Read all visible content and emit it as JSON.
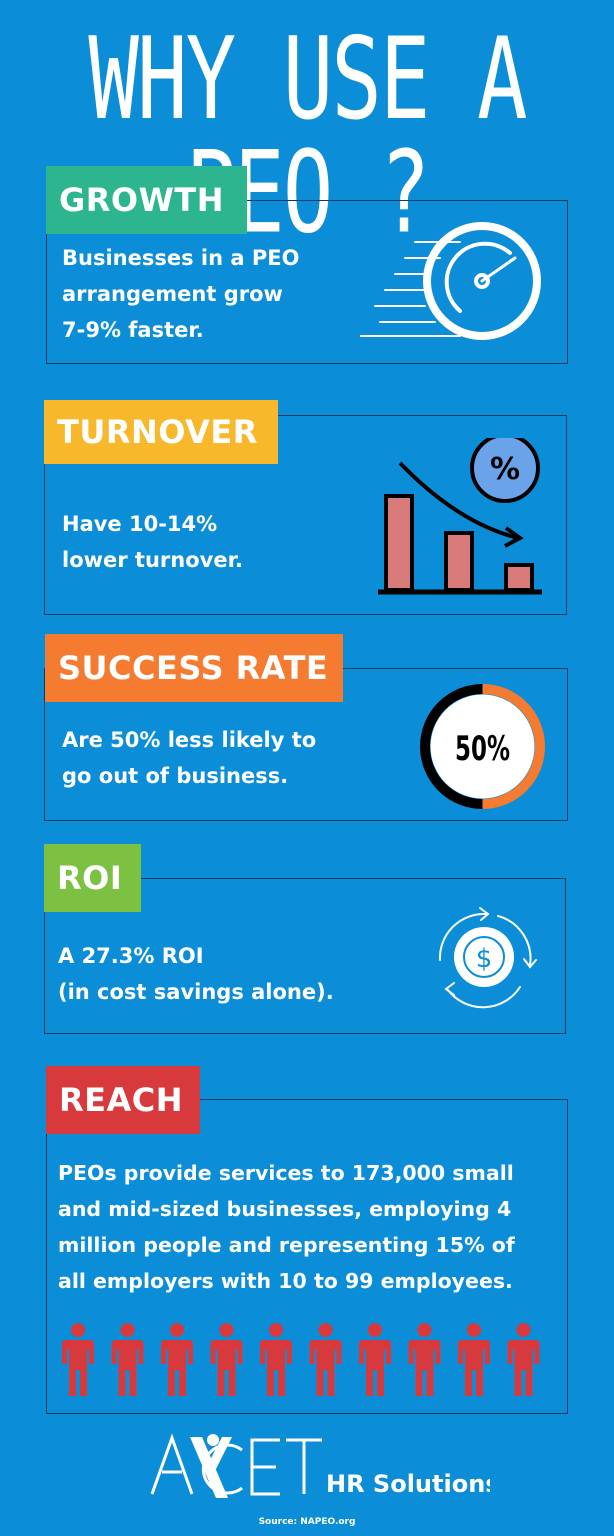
{
  "title": "WHY USE A PEO ?",
  "colors": {
    "background": "#0b8ed7",
    "growth": "#2db58f",
    "turnover": "#f8b82c",
    "success": "#f47b30",
    "roi": "#7cc142",
    "reach": "#d8393d"
  },
  "sections": [
    {
      "label": "GROWTH",
      "text": [
        "Businesses in a PEO",
        "arrangement grow",
        "7-9% faster."
      ],
      "icon": "speedometer-icon"
    },
    {
      "label": "TURNOVER",
      "text": [
        "Have 10-14%",
        "lower turnover."
      ],
      "icon": "declining-bar-chart-percent-icon"
    },
    {
      "label": "SUCCESS RATE",
      "text": [
        "Are 50% less likely to",
        "go out of business."
      ],
      "icon": "percent-ring-icon",
      "ring_value": "50%",
      "ring_fraction": 0.5
    },
    {
      "label": "ROI",
      "text": [
        "A 27.3% ROI",
        "(in cost savings alone)."
      ],
      "icon": "dollar-cycle-icon"
    },
    {
      "label": "REACH",
      "text": [
        "PEOs provide services to 173,000 small",
        "and mid-sized businesses, employing 4",
        "million people and representing 15% of",
        "all employers with 10 to 99 employees."
      ],
      "icon": "people-icon",
      "people_count": 10
    }
  ],
  "logo": {
    "brand": "AXCET",
    "tagline": "HR Solutions"
  },
  "source": "Source: NAPEO.org"
}
